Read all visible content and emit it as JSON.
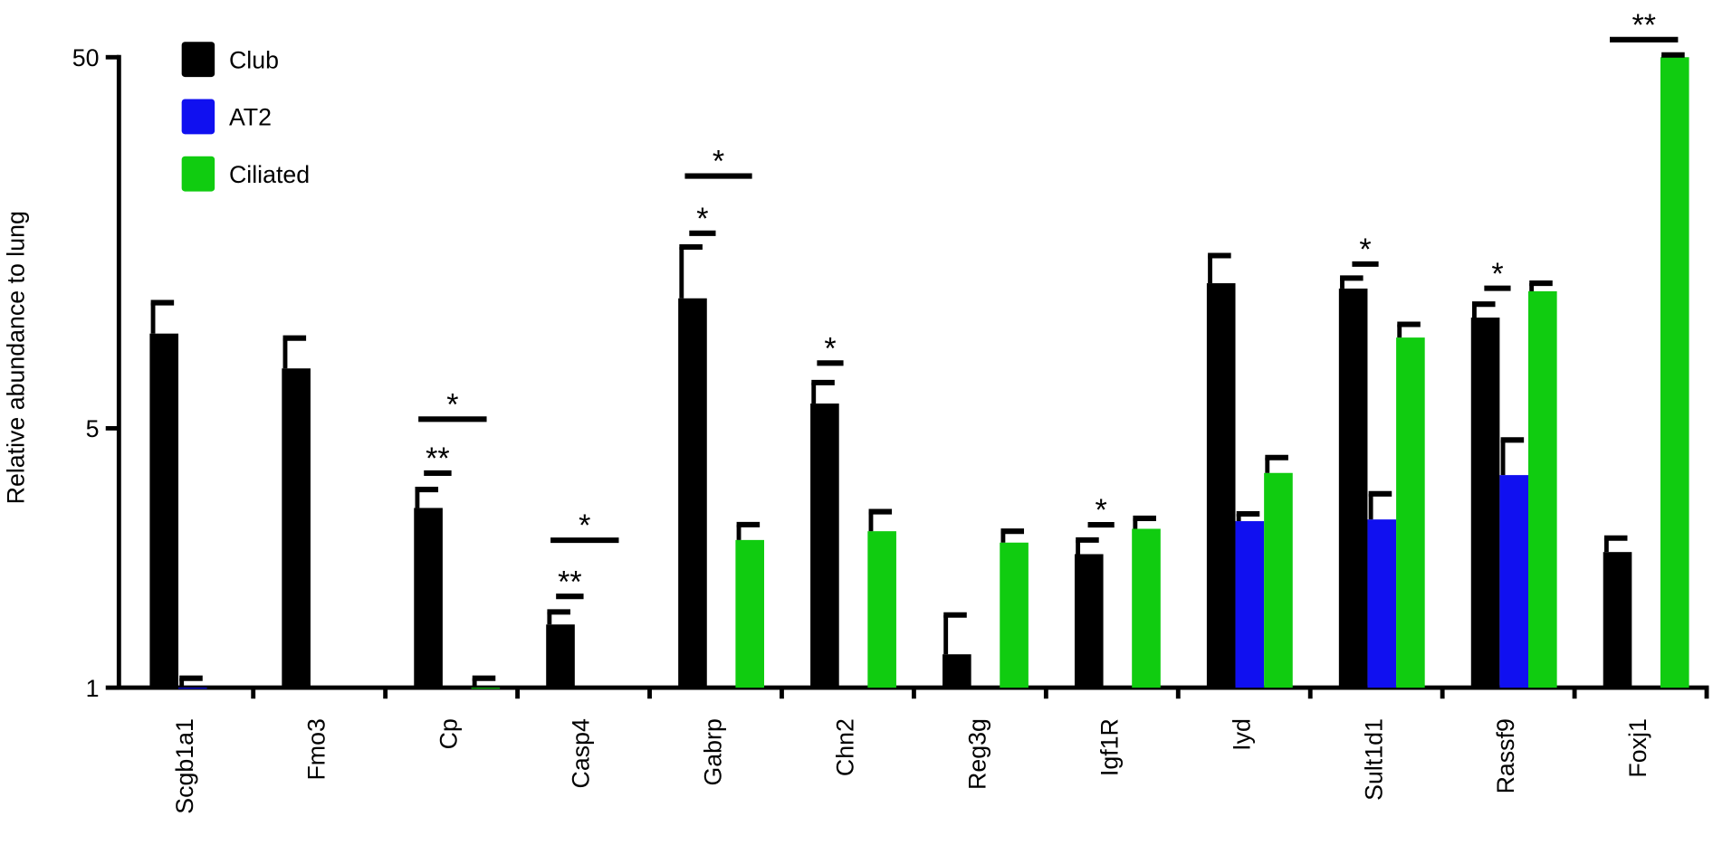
{
  "chart_data": {
    "type": "bar",
    "y_label": "Relative abundance to lung",
    "log_scale": true,
    "ylim": [
      1,
      50
    ],
    "yticks": [
      1,
      5,
      50
    ],
    "legend": "upper left",
    "categories": [
      "Scgb1a1",
      "Fmo3",
      "Cp",
      "Casp4",
      "Gabrp",
      "Chn2",
      "Reg3g",
      "Igf1R",
      "Iyd",
      "Sult1d1",
      "Rassf9",
      "Foxj1"
    ],
    "series": [
      {
        "name": "Club",
        "color": "#000000",
        "values": [
          9.0,
          7.25,
          3.05,
          1.48,
          11.2,
          5.83,
          1.23,
          2.29,
          12.3,
          11.9,
          9.94,
          2.32
        ],
        "error": [
          1.9,
          1.5,
          0.37,
          0.12,
          4.2,
          0.81,
          0.34,
          0.21,
          2.3,
          0.8,
          0.86,
          0.21
        ]
      },
      {
        "name": "AT2",
        "color": "#1010f0",
        "values": [
          1.0,
          null,
          null,
          null,
          null,
          null,
          null,
          null,
          2.81,
          2.84,
          3.74,
          null
        ],
        "error": [
          0.06,
          null,
          null,
          null,
          null,
          null,
          null,
          null,
          0.13,
          0.49,
          0.91,
          null
        ]
      },
      {
        "name": "Ciliated",
        "color": "#10cc10",
        "values": [
          null,
          null,
          1.0,
          null,
          2.5,
          2.64,
          2.46,
          2.68,
          3.79,
          8.78,
          11.7,
          50
        ],
        "error": [
          null,
          null,
          0.06,
          null,
          0.25,
          0.34,
          0.18,
          0.18,
          0.38,
          0.75,
          0.6,
          0.7
        ]
      }
    ],
    "annotations": [
      "*",
      "**",
      "*",
      "**",
      "*",
      "*",
      "*",
      "*",
      "*",
      "*",
      "**"
    ]
  }
}
